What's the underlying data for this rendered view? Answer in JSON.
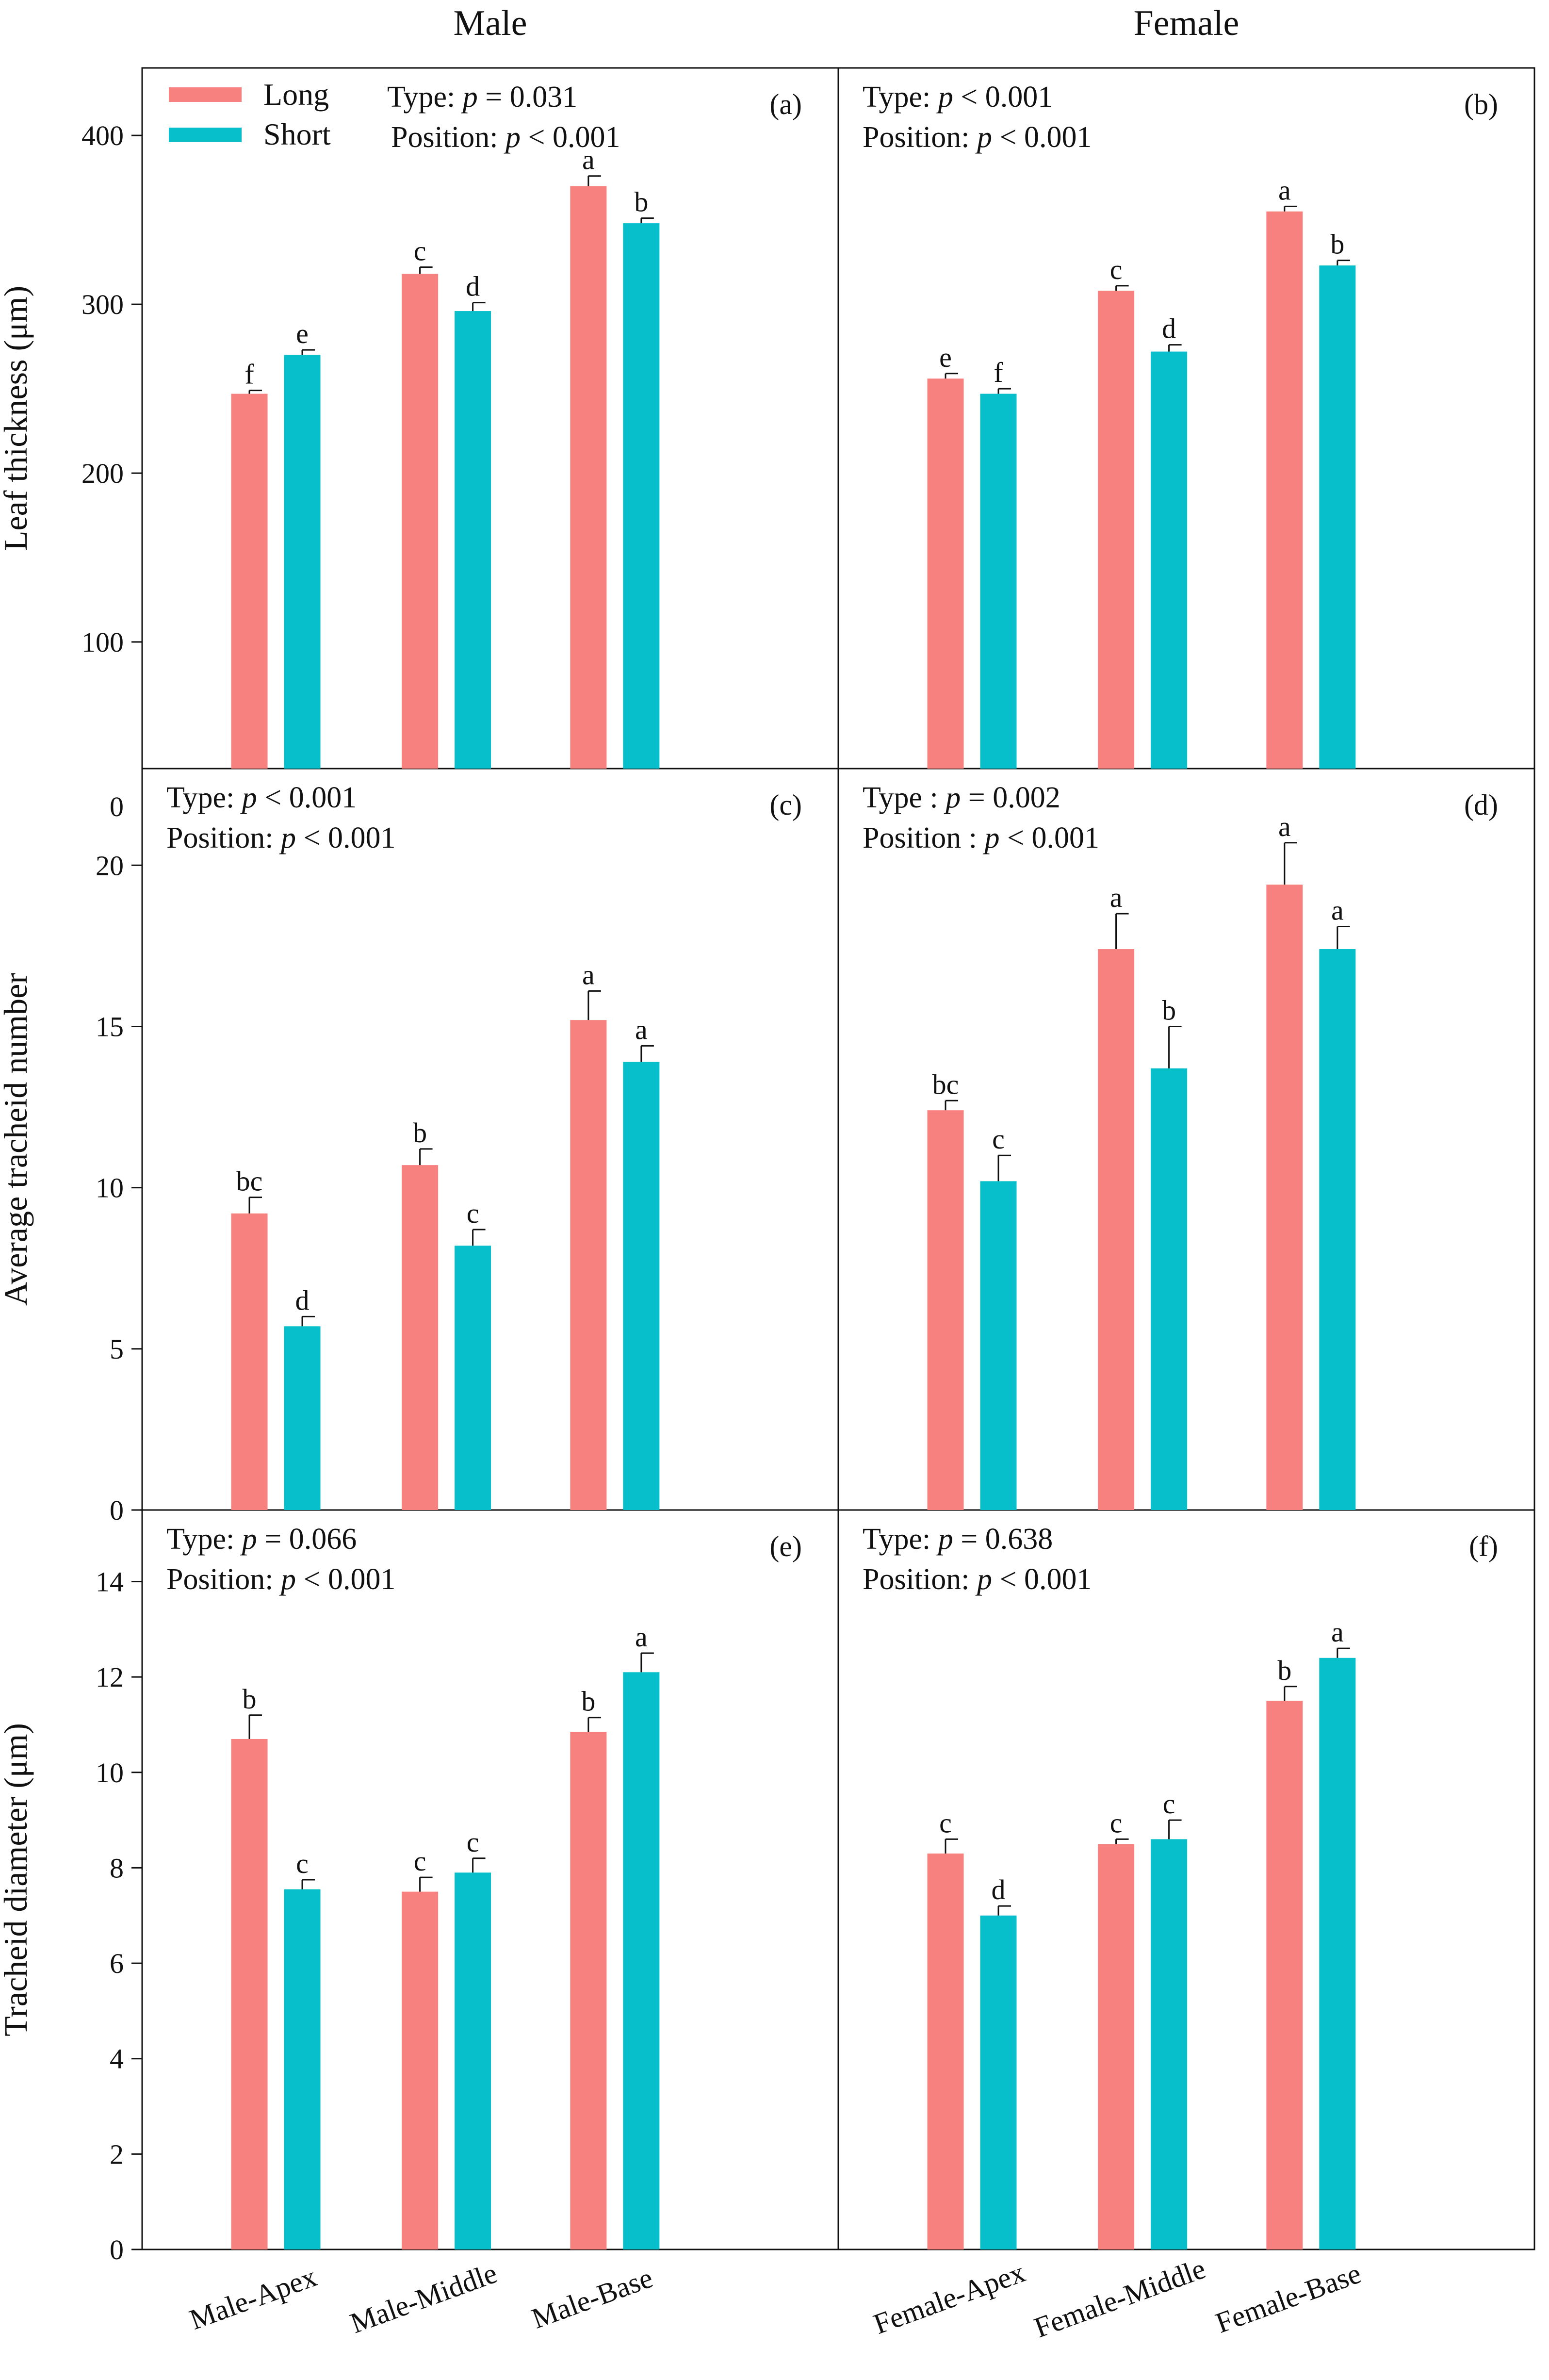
{
  "chart_data": [
    {
      "id": "a",
      "type": "bar",
      "panel_label": "(a)",
      "column_title": "Male",
      "ylabel": "Leaf thickness (μm)",
      "ylim": [
        25,
        440
      ],
      "yticks": [
        100,
        200,
        300,
        400
      ],
      "categories": [
        "Male-Apex",
        "Male-Middle",
        "Male-Base"
      ],
      "series": [
        {
          "name": "Long",
          "values": [
            247,
            318,
            370
          ],
          "errors": [
            2,
            4,
            6
          ],
          "letters": [
            "f",
            "c",
            "a"
          ]
        },
        {
          "name": "Short",
          "values": [
            270,
            296,
            348
          ],
          "errors": [
            3,
            5,
            3
          ],
          "letters": [
            "e",
            "d",
            "b"
          ]
        }
      ],
      "stats": [
        "Type: p = 0.031",
        "Position: p < 0.001"
      ],
      "legend": {
        "position": "top-left",
        "entries": [
          "Long",
          "Short"
        ]
      }
    },
    {
      "id": "b",
      "type": "bar",
      "panel_label": "(b)",
      "column_title": "Female",
      "ylabel": "",
      "ylim": [
        25,
        440
      ],
      "yticks": [],
      "categories": [
        "Female-Apex",
        "Female-Middle",
        "Female-Base"
      ],
      "series": [
        {
          "name": "Long",
          "values": [
            256,
            308,
            355
          ],
          "errors": [
            3,
            3,
            3
          ],
          "letters": [
            "e",
            "c",
            "a"
          ]
        },
        {
          "name": "Short",
          "values": [
            247,
            272,
            323
          ],
          "errors": [
            3,
            4,
            3
          ],
          "letters": [
            "f",
            "d",
            "b"
          ]
        }
      ],
      "stats": [
        "Type: p < 0.001",
        "Position: p < 0.001"
      ]
    },
    {
      "id": "c",
      "type": "bar",
      "panel_label": "(c)",
      "ylabel": "Average tracheid number",
      "ylim": [
        0,
        23
      ],
      "yticks": [
        0,
        5,
        10,
        15,
        20
      ],
      "top_tick_label": "0",
      "categories": [
        "Male-Apex",
        "Male-Middle",
        "Male-Base"
      ],
      "series": [
        {
          "name": "Long",
          "values": [
            9.2,
            10.7,
            15.2
          ],
          "errors": [
            0.5,
            0.5,
            0.9
          ],
          "letters": [
            "bc",
            "b",
            "a"
          ]
        },
        {
          "name": "Short",
          "values": [
            5.7,
            8.2,
            13.9
          ],
          "errors": [
            0.3,
            0.5,
            0.5
          ],
          "letters": [
            "d",
            "c",
            "a"
          ]
        }
      ],
      "stats": [
        "Type: p < 0.001",
        "Position: p < 0.001"
      ]
    },
    {
      "id": "d",
      "type": "bar",
      "panel_label": "(d)",
      "ylabel": "",
      "ylim": [
        0,
        23
      ],
      "yticks": [],
      "categories": [
        "Female-Apex",
        "Female-Middle",
        "Female-Base"
      ],
      "series": [
        {
          "name": "Long",
          "values": [
            12.4,
            17.4,
            19.4
          ],
          "errors": [
            0.3,
            1.1,
            1.3
          ],
          "letters": [
            "bc",
            "a",
            "a"
          ]
        },
        {
          "name": "Short",
          "values": [
            10.2,
            13.7,
            17.4
          ],
          "errors": [
            0.8,
            1.3,
            0.7
          ],
          "letters": [
            "c",
            "b",
            "a"
          ]
        }
      ],
      "stats": [
        "Type : p = 0.002",
        "Position : p < 0.001"
      ]
    },
    {
      "id": "e",
      "type": "bar",
      "panel_label": "(e)",
      "ylabel": "Tracheid diameter (μm)",
      "ylim": [
        0,
        15.5
      ],
      "yticks": [
        0,
        2,
        4,
        6,
        8,
        10,
        12,
        14
      ],
      "categories": [
        "Male-Apex",
        "Male-Middle",
        "Male-Base"
      ],
      "series": [
        {
          "name": "Long",
          "values": [
            10.7,
            7.5,
            10.85
          ],
          "errors": [
            0.5,
            0.3,
            0.3
          ],
          "letters": [
            "b",
            "c",
            "b"
          ]
        },
        {
          "name": "Short",
          "values": [
            7.55,
            7.9,
            12.1
          ],
          "errors": [
            0.2,
            0.3,
            0.4
          ],
          "letters": [
            "c",
            "c",
            "a"
          ]
        }
      ],
      "stats": [
        "Type: p = 0.066",
        "Position: p < 0.001"
      ]
    },
    {
      "id": "f",
      "type": "bar",
      "panel_label": "(f)",
      "ylabel": "",
      "ylim": [
        0,
        15.5
      ],
      "yticks": [],
      "categories": [
        "Female-Apex",
        "Female-Middle",
        "Female-Base"
      ],
      "series": [
        {
          "name": "Long",
          "values": [
            8.3,
            8.5,
            11.5
          ],
          "errors": [
            0.3,
            0.1,
            0.3
          ],
          "letters": [
            "c",
            "c",
            "b"
          ]
        },
        {
          "name": "Short",
          "values": [
            7.0,
            8.6,
            12.4
          ],
          "errors": [
            0.2,
            0.4,
            0.2
          ],
          "letters": [
            "d",
            "c",
            "a"
          ]
        }
      ],
      "stats": [
        "Type: p = 0.638",
        "Position: p < 0.001"
      ]
    }
  ],
  "colors": {
    "long": "#f6817f",
    "short": "#06bfcb",
    "axis": "#111111"
  },
  "column_titles": [
    "Male",
    "Female"
  ],
  "legend_entries": [
    "Long",
    "Short"
  ],
  "x_categories": [
    "Male-Apex",
    "Male-Middle",
    "Male-Base",
    "Female-Apex",
    "Female-Middle",
    "Female-Base"
  ]
}
